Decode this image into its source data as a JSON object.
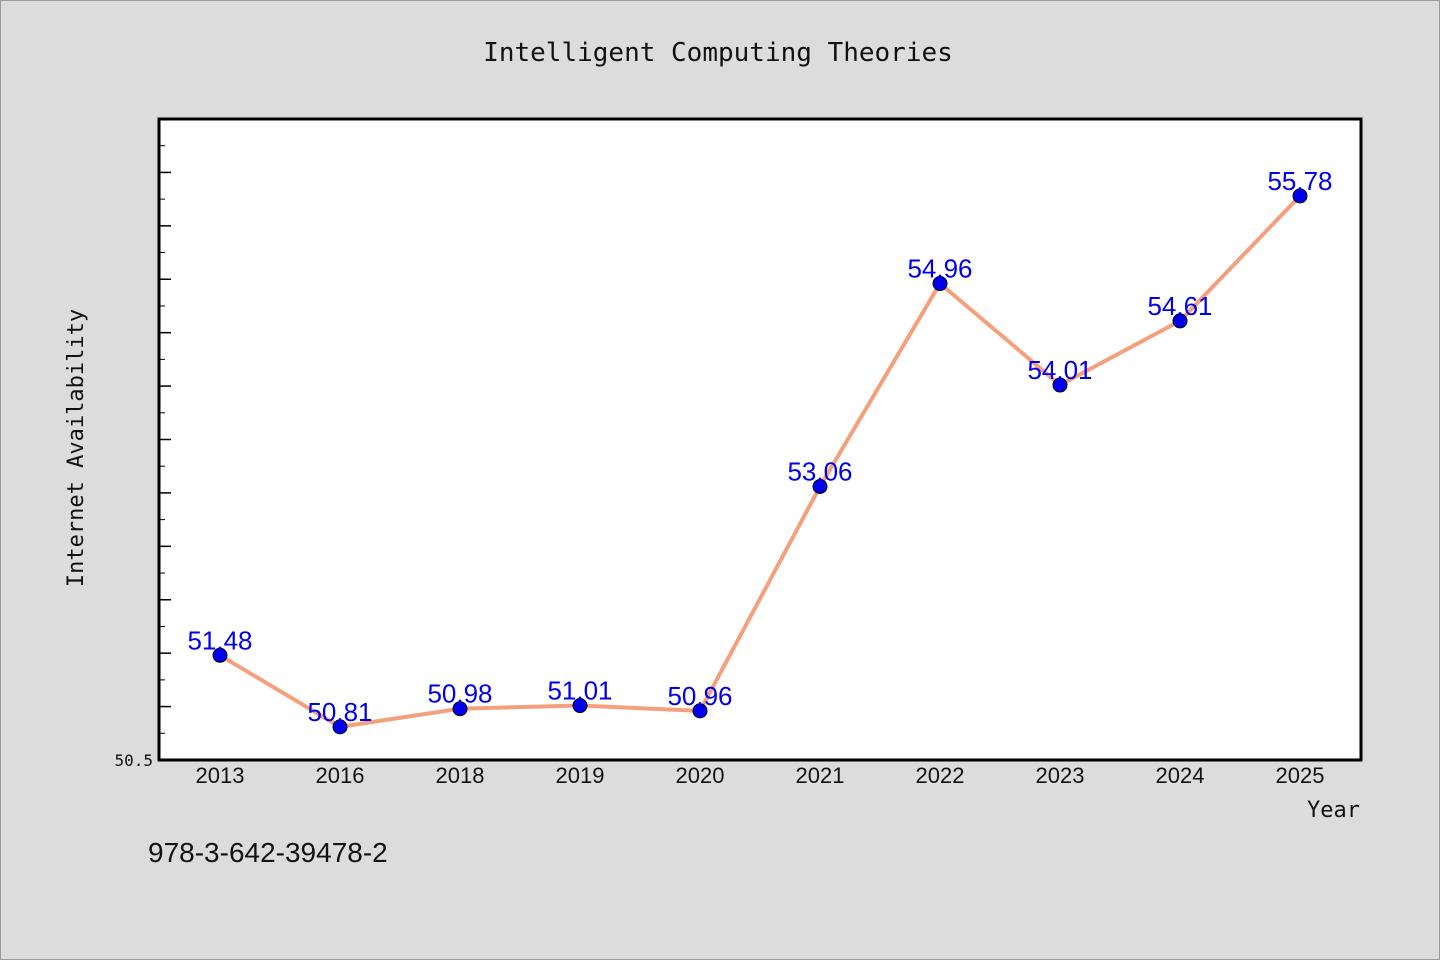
{
  "chart_data": {
    "type": "line",
    "title": "Intelligent Computing Theories",
    "xlabel": "Year",
    "ylabel": "Internet Availability",
    "categories": [
      "2013",
      "2016",
      "2018",
      "2019",
      "2020",
      "2021",
      "2022",
      "2023",
      "2024",
      "2025"
    ],
    "series": [
      {
        "values": [
          51.48,
          50.81,
          50.98,
          51.01,
          50.96,
          53.06,
          54.96,
          54.01,
          54.61,
          55.78
        ]
      }
    ],
    "data_labels": [
      "51.48",
      "50.81",
      "50.98",
      "51.01",
      "50.96",
      "53.06",
      "54.96",
      "54.01",
      "54.61",
      "55.78"
    ],
    "ylim": [
      50.5,
      56.5
    ],
    "y_tick_labels": [
      "50.5"
    ],
    "grid": false,
    "line_color": "#f4a07c",
    "marker_color": "#0000ee",
    "label_color": "#0000ee"
  },
  "footer": {
    "isbn": "978-3-642-39478-2"
  }
}
